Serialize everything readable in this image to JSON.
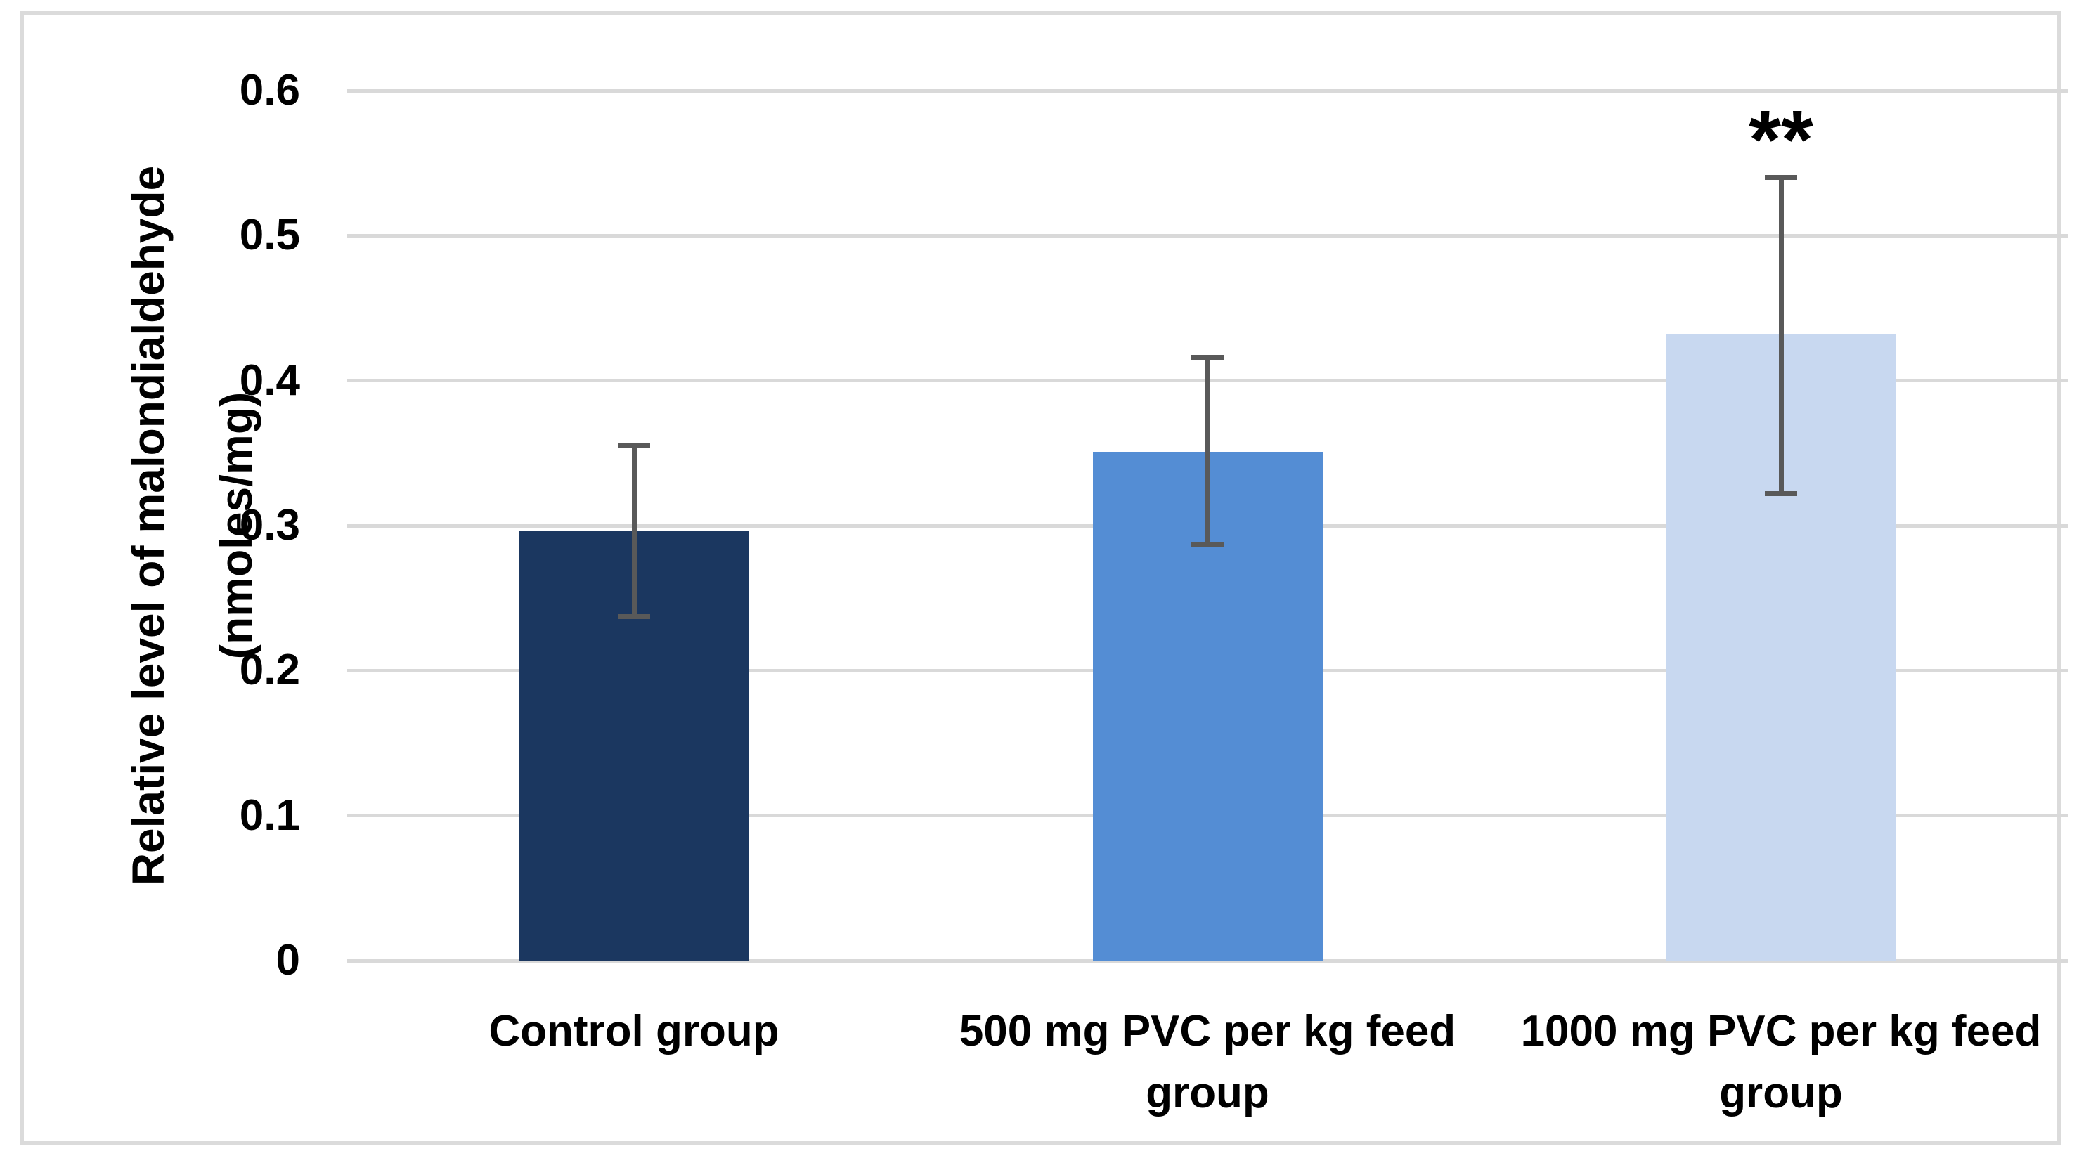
{
  "chart_data": {
    "type": "bar",
    "title": "",
    "xlabel": "",
    "ylabel_line1": "Relative level of malondialdehyde",
    "ylabel_line2": "(nmoles/mg)",
    "categories": [
      "Control group",
      "500 mg PVC per kg feed group",
      "1000 mg PVC per kg feed group"
    ],
    "values": [
      0.296,
      0.351,
      0.432
    ],
    "error_upper": [
      0.355,
      0.416,
      0.54
    ],
    "error_lower": [
      0.237,
      0.287,
      0.322
    ],
    "ylim": [
      0,
      0.6
    ],
    "ytick_step": 0.1,
    "ytick_labels": [
      "0",
      "0.1",
      "0.2",
      "0.3",
      "0.4",
      "0.5",
      "0.6"
    ],
    "grid": true,
    "legend_position": "none",
    "annotations": [
      {
        "text": "**",
        "category": "1000 mg PVC per kg feed group",
        "category_index": 2
      }
    ],
    "colors": {
      "bars": [
        "#1B3760",
        "#548DD4",
        "#C8D8F0"
      ],
      "error_bar": "#595959",
      "gridline": "#D9D9D9",
      "text": "#000000",
      "frame_border": "#DBDBDB",
      "background": "#FFFFFF"
    }
  }
}
